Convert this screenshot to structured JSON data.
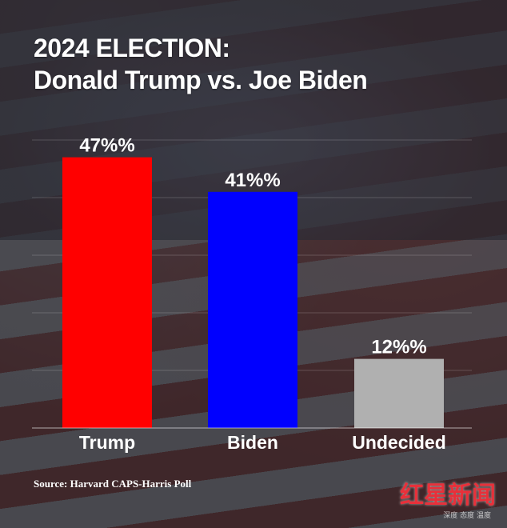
{
  "title_line1": "2024 ELECTION:",
  "title_line2": "Donald Trump vs. Joe Biden",
  "source": "Source: Harvard CAPS-Harris Poll",
  "watermark": "红星新闻",
  "watermark_sub": "深度 态度 温度",
  "chart_data": {
    "type": "bar",
    "categories": [
      "Trump",
      "Biden",
      "Undecided"
    ],
    "values": [
      47,
      41,
      12
    ],
    "data_labels": [
      "47%%",
      "41%%",
      "12%%"
    ],
    "colors": [
      "#ff0000",
      "#0000ff",
      "#b0b0b0"
    ],
    "ylim": [
      0,
      50
    ],
    "grid": true
  }
}
